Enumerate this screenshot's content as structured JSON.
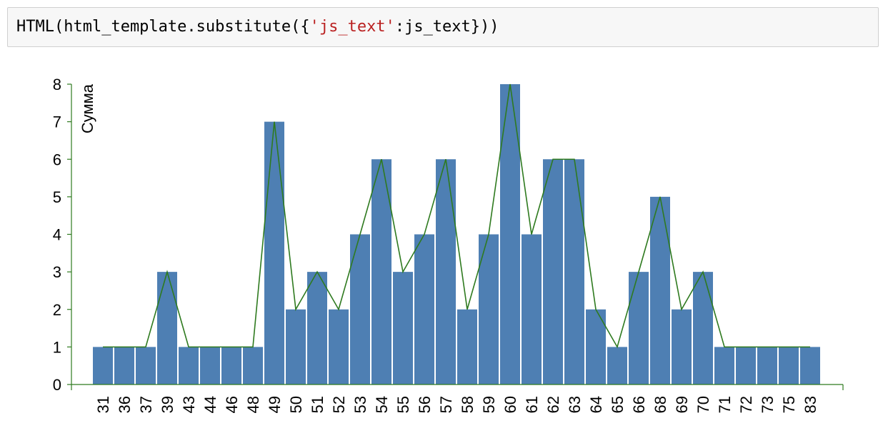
{
  "code_cell": {
    "parts": [
      {
        "text": "HTML(html_template.substitute({",
        "kind": "plain"
      },
      {
        "text": "'js_text'",
        "kind": "string"
      },
      {
        "text": ":js_text}))",
        "kind": "plain"
      }
    ]
  },
  "chart_data": {
    "type": "bar",
    "overlay": "line",
    "categories": [
      "31",
      "36",
      "37",
      "39",
      "43",
      "44",
      "46",
      "48",
      "49",
      "50",
      "51",
      "52",
      "53",
      "54",
      "55",
      "56",
      "57",
      "58",
      "59",
      "60",
      "61",
      "62",
      "63",
      "64",
      "65",
      "66",
      "68",
      "69",
      "70",
      "71",
      "72",
      "73",
      "75",
      "83"
    ],
    "values": [
      1,
      1,
      1,
      3,
      1,
      1,
      1,
      1,
      7,
      2,
      3,
      2,
      4,
      6,
      3,
      4,
      6,
      2,
      4,
      8,
      4,
      6,
      6,
      2,
      1,
      3,
      5,
      2,
      3,
      1,
      1,
      1,
      1,
      1
    ],
    "ylabel": "Сумма",
    "ylim": [
      0,
      8
    ],
    "yticks": [
      0,
      1,
      2,
      3,
      4,
      5,
      6,
      7,
      8
    ],
    "bar_color": "#4e7fb3",
    "line_color": "#2e7a1f",
    "axis_color": "#2e7a1f",
    "grid": false
  }
}
